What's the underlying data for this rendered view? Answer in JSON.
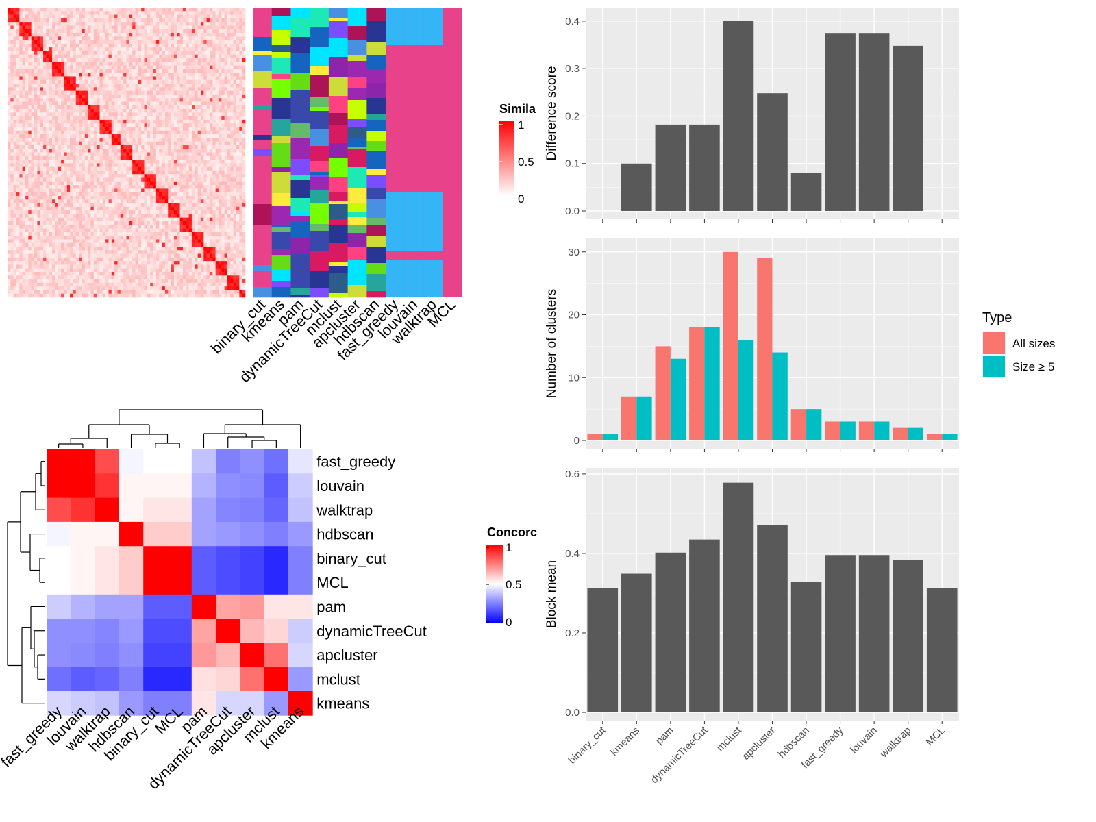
{
  "chart_data": [
    {
      "type": "heatmap",
      "panel": "similarity-matrix",
      "legend": {
        "title": "Simila",
        "breaks": [
          "1",
          "0.5",
          "0"
        ],
        "colors": [
          "#ff0000",
          "#ffffff"
        ]
      },
      "note": "dense square similarity matrix with a red diagonal of blocks"
    },
    {
      "type": "heatmap",
      "panel": "cluster-assignments",
      "columns": [
        "binary_cut",
        "kmeans",
        "pam",
        "dynamicTreeCut",
        "mclust",
        "apcluster",
        "hdbscan",
        "fast_greedy",
        "louvain",
        "walktrap",
        "MCL"
      ]
    },
    {
      "type": "heatmap",
      "panel": "concordance",
      "labels": [
        "fast_greedy",
        "louvain",
        "walktrap",
        "hdbscan",
        "binary_cut",
        "MCL",
        "pam",
        "dynamicTreeCut",
        "apcluster",
        "mclust",
        "kmeans"
      ],
      "legend": {
        "title": "Concorc",
        "breaks": [
          "1",
          "0.5",
          "0"
        ],
        "colors": [
          "#0000ff",
          "#ffffff",
          "#ff0000"
        ]
      },
      "values": [
        [
          1.0,
          1.0,
          0.85,
          0.48,
          0.5,
          0.5,
          0.38,
          0.25,
          0.28,
          0.22,
          0.45
        ],
        [
          1.0,
          1.0,
          0.9,
          0.52,
          0.52,
          0.52,
          0.35,
          0.28,
          0.27,
          0.18,
          0.4
        ],
        [
          0.85,
          0.9,
          1.0,
          0.52,
          0.55,
          0.55,
          0.32,
          0.26,
          0.25,
          0.2,
          0.38
        ],
        [
          0.48,
          0.52,
          0.52,
          1.0,
          0.6,
          0.6,
          0.32,
          0.3,
          0.28,
          0.25,
          0.3
        ],
        [
          0.5,
          0.52,
          0.55,
          0.6,
          1.0,
          1.0,
          0.18,
          0.15,
          0.13,
          0.08,
          0.25
        ],
        [
          0.5,
          0.52,
          0.55,
          0.6,
          1.0,
          1.0,
          0.18,
          0.15,
          0.13,
          0.08,
          0.25
        ],
        [
          0.4,
          0.35,
          0.32,
          0.32,
          0.18,
          0.18,
          1.0,
          0.68,
          0.7,
          0.55,
          0.55
        ],
        [
          0.28,
          0.28,
          0.26,
          0.3,
          0.15,
          0.15,
          0.68,
          1.0,
          0.64,
          0.58,
          0.4
        ],
        [
          0.28,
          0.27,
          0.25,
          0.28,
          0.13,
          0.13,
          0.7,
          0.64,
          1.0,
          0.78,
          0.42
        ],
        [
          0.22,
          0.18,
          0.2,
          0.25,
          0.08,
          0.08,
          0.56,
          0.58,
          0.78,
          1.0,
          0.3
        ],
        [
          0.42,
          0.4,
          0.38,
          0.3,
          0.25,
          0.25,
          0.55,
          0.42,
          0.42,
          0.3,
          1.0
        ]
      ]
    },
    {
      "type": "bar",
      "panel": "difference-score",
      "categories": [
        "binary_cut",
        "kmeans",
        "pam",
        "dynamicTreeCut",
        "mclust",
        "apcluster",
        "hdbscan",
        "fast_greedy",
        "louvain",
        "walktrap",
        "MCL"
      ],
      "values": [
        0.0,
        0.1,
        0.182,
        0.182,
        0.4,
        0.248,
        0.08,
        0.375,
        0.375,
        0.348,
        0.0
      ],
      "ylabel": "Difference score",
      "ylim": [
        0,
        0.42
      ],
      "yticks": [
        "0.0",
        "0.1",
        "0.2",
        "0.3",
        "0.4"
      ],
      "color": "#595959"
    },
    {
      "type": "bar",
      "panel": "number-of-clusters",
      "categories": [
        "binary_cut",
        "kmeans",
        "pam",
        "dynamicTreeCut",
        "mclust",
        "apcluster",
        "hdbscan",
        "fast_greedy",
        "louvain",
        "walktrap",
        "MCL"
      ],
      "series": [
        {
          "name": "All sizes",
          "color": "#F8766D",
          "values": [
            1,
            7,
            15,
            18,
            30,
            29,
            5,
            3,
            3,
            2,
            1
          ]
        },
        {
          "name": "Size ≥ 5",
          "color": "#00BFC4",
          "values": [
            1,
            7,
            13,
            18,
            16,
            14,
            5,
            3,
            3,
            2,
            1
          ]
        }
      ],
      "ylabel": "Number of clusters",
      "ylim": [
        0,
        31.5
      ],
      "yticks": [
        "0",
        "10",
        "20",
        "30"
      ],
      "legend": {
        "title": "Type",
        "position": "right"
      }
    },
    {
      "type": "bar",
      "panel": "block-mean",
      "categories": [
        "binary_cut",
        "kmeans",
        "pam",
        "dynamicTreeCut",
        "mclust",
        "apcluster",
        "hdbscan",
        "fast_greedy",
        "louvain",
        "walktrap",
        "MCL"
      ],
      "values": [
        0.313,
        0.349,
        0.402,
        0.435,
        0.578,
        0.472,
        0.329,
        0.396,
        0.396,
        0.384,
        0.313
      ],
      "ylabel": "Block mean",
      "ylim": [
        0,
        0.605
      ],
      "yticks": [
        "0.0",
        "0.2",
        "0.4",
        "0.6"
      ],
      "color": "#595959"
    }
  ]
}
